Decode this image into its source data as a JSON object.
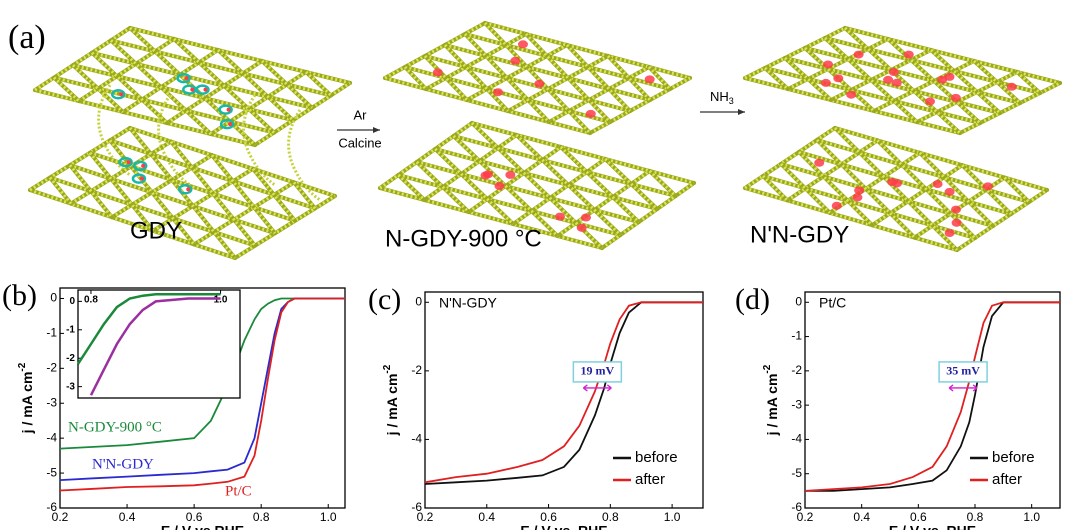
{
  "panel_a": {
    "label": "(a)",
    "sheet_labels": [
      "GDY",
      "N-GDY-900 °C",
      "N'N-GDY"
    ],
    "step1": [
      "Ar",
      "Calcine"
    ],
    "step2": {
      "text": "NH",
      "sub": "3"
    }
  },
  "chart_data": [
    {
      "type": "line",
      "panel": "(b)",
      "x": [
        0.2,
        0.3,
        0.4,
        0.5,
        0.6,
        0.65,
        0.7,
        0.75,
        0.78,
        0.8,
        0.82,
        0.84,
        0.86,
        0.88,
        0.9,
        0.95,
        1.0,
        1.05
      ],
      "xlim": [
        0.2,
        1.05
      ],
      "xticks": [
        0.2,
        0.4,
        0.6,
        0.8,
        {
          "value": 1,
          "label": "1.0"
        }
      ],
      "ylim": [
        -6,
        0.3
      ],
      "yticks": [
        0,
        -1,
        -2,
        -3,
        -4,
        -5,
        -6
      ],
      "xlabel": "E / V vs RHE",
      "ylabel": "j / mA cm",
      "ylabel_sup": "-2",
      "series": [
        {
          "name": "N-GDY-900 °C",
          "color": "#1a8a3a",
          "values": [
            -4.3,
            -4.25,
            -4.2,
            -4.1,
            -4.0,
            -3.5,
            -2.5,
            -1.2,
            -0.6,
            -0.3,
            -0.15,
            -0.05,
            0,
            0,
            0,
            0,
            0,
            0
          ]
        },
        {
          "name": "N'N-GDY",
          "color": "#2a2ad0",
          "values": [
            -5.2,
            -5.15,
            -5.1,
            -5.05,
            -5.0,
            -4.95,
            -4.9,
            -4.7,
            -4.0,
            -3.0,
            -2.0,
            -1.0,
            -0.3,
            -0.1,
            0,
            0,
            0,
            0
          ]
        },
        {
          "name": "Pt/C",
          "color": "#e02020",
          "values": [
            -5.5,
            -5.45,
            -5.4,
            -5.38,
            -5.35,
            -5.3,
            -5.25,
            -5.1,
            -4.5,
            -3.5,
            -2.3,
            -1.2,
            -0.4,
            -0.1,
            0,
            0,
            0,
            0
          ]
        }
      ],
      "inset": {
        "x": [
          0.78,
          0.8,
          0.82,
          0.84,
          0.86,
          0.88,
          0.9,
          0.95,
          1.0
        ],
        "xlim": [
          0.78,
          1.03
        ],
        "ylim": [
          -3.4,
          0.4
        ],
        "xticks": [
          0.8,
          {
            "value": 1,
            "label": "1.0"
          }
        ],
        "yticks": [
          0,
          -1,
          -2,
          -3
        ],
        "series": [
          {
            "color": "#1a8a3a",
            "values": [
              -2.2,
              -1.5,
              -0.8,
              -0.2,
              0.1,
              0.2,
              0.25,
              0.25,
              0.25
            ]
          },
          {
            "color": "#9b2fa0",
            "values": [
              null,
              -3.3,
              -2.4,
              -1.5,
              -0.8,
              -0.3,
              0,
              0.1,
              0.1
            ]
          }
        ]
      }
    },
    {
      "type": "line",
      "panel": "(c)",
      "title": "N'N-GDY",
      "annotation": "19 mV",
      "legend": "lower right",
      "x": [
        0.2,
        0.3,
        0.4,
        0.5,
        0.58,
        0.65,
        0.7,
        0.75,
        0.78,
        0.8,
        0.83,
        0.86,
        0.9,
        1.0,
        1.1
      ],
      "xlim": [
        0.2,
        1.1
      ],
      "xticks": [
        0.2,
        0.4,
        0.6,
        0.8,
        {
          "value": 1,
          "label": "1.0"
        }
      ],
      "ylim": [
        -6,
        0.3
      ],
      "yticks": [
        0,
        -2,
        -4,
        -6
      ],
      "xlabel": "E / V vs. RHE",
      "ylabel": "j / mA cm",
      "ylabel_sup": "-2",
      "series": [
        {
          "name": "before",
          "color": "#111111",
          "values": [
            -5.3,
            -5.25,
            -5.2,
            -5.12,
            -5.05,
            -4.8,
            -4.3,
            -3.3,
            -2.5,
            -1.8,
            -0.9,
            -0.3,
            0,
            0,
            0
          ]
        },
        {
          "name": "after",
          "color": "#e02020",
          "values": [
            -5.25,
            -5.1,
            -5.0,
            -4.8,
            -4.6,
            -4.2,
            -3.6,
            -2.6,
            -1.8,
            -1.2,
            -0.5,
            -0.1,
            0,
            0,
            0
          ]
        }
      ]
    },
    {
      "type": "line",
      "panel": "(d)",
      "title": "Pt/C",
      "annotation": "35 mV",
      "legend": "lower right",
      "x": [
        0.2,
        0.3,
        0.4,
        0.5,
        0.58,
        0.65,
        0.7,
        0.75,
        0.78,
        0.8,
        0.83,
        0.86,
        0.9,
        1.0,
        1.1
      ],
      "xlim": [
        0.2,
        1.1
      ],
      "xticks": [
        0.2,
        0.4,
        0.6,
        0.8,
        {
          "value": 1,
          "label": "1.0"
        }
      ],
      "ylim": [
        -6,
        0.3
      ],
      "yticks": [
        0,
        -1,
        -2,
        -3,
        -4,
        -5,
        -6
      ],
      "xlabel": "E / V vs. RHE",
      "ylabel": "j / mA cm",
      "ylabel_sup": "-2",
      "series": [
        {
          "name": "before",
          "color": "#111111",
          "values": [
            -5.5,
            -5.5,
            -5.45,
            -5.4,
            -5.3,
            -5.2,
            -4.9,
            -4.2,
            -3.5,
            -2.7,
            -1.3,
            -0.4,
            0,
            0,
            0
          ]
        },
        {
          "name": "after",
          "color": "#e02020",
          "values": [
            -5.5,
            -5.45,
            -5.4,
            -5.3,
            -5.1,
            -4.8,
            -4.2,
            -3.2,
            -2.3,
            -1.6,
            -0.6,
            -0.1,
            0,
            0,
            0
          ]
        }
      ]
    }
  ]
}
